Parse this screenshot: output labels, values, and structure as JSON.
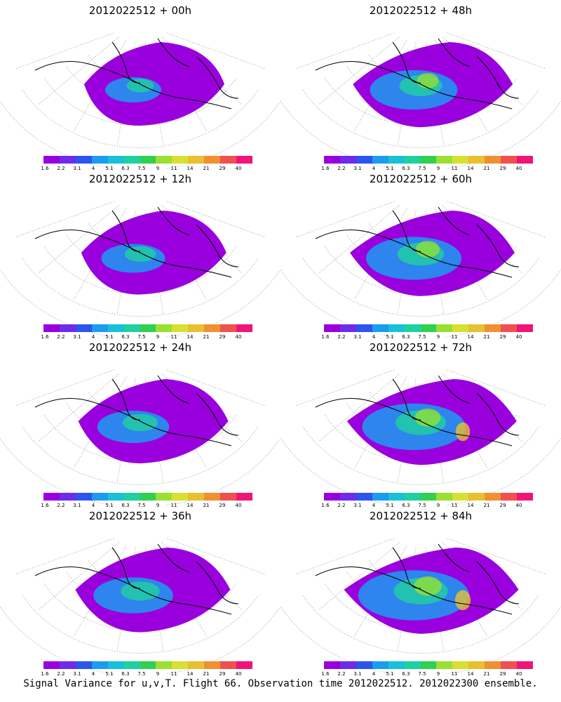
{
  "footer": "Signal Variance for u,v,T. Flight 66. Observation time 2012022512. 2012022300 ensemble.",
  "colorbar": {
    "ticks": [
      "1.6",
      "2.2",
      "3.1",
      "4",
      "5.1",
      "6.3",
      "7.5",
      "9",
      "11",
      "14",
      "21",
      "29",
      "40"
    ],
    "colors": [
      "#9900dd",
      "#6e2bea",
      "#2e54ee",
      "#1a9cf0",
      "#18c0d8",
      "#1fd0a0",
      "#30d050",
      "#9ae030",
      "#d8e030",
      "#e8c030",
      "#f09030",
      "#f05050",
      "#f01478"
    ]
  },
  "panels": [
    {
      "title": "2012022512 + 00h"
    },
    {
      "title": "2012022512 + 48h"
    },
    {
      "title": "2012022512 + 12h"
    },
    {
      "title": "2012022512 + 60h"
    },
    {
      "title": "2012022512 + 24h"
    },
    {
      "title": "2012022512 + 72h"
    },
    {
      "title": "2012022512 + 36h"
    },
    {
      "title": "2012022512 + 84h"
    }
  ]
}
